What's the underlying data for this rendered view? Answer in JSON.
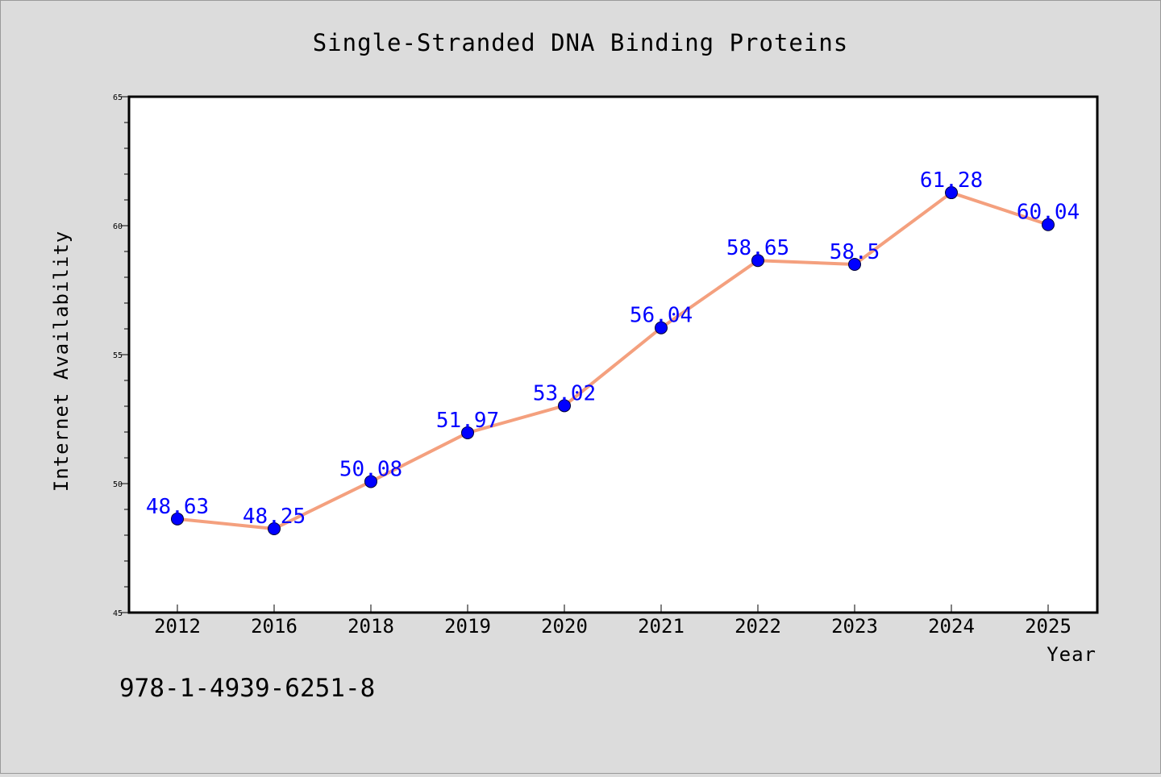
{
  "chart_data": {
    "type": "line",
    "title": "Single-Stranded DNA Binding Proteins",
    "xlabel": "Year",
    "ylabel": "Internet Availability",
    "categories": [
      "2012",
      "2016",
      "2018",
      "2019",
      "2020",
      "2021",
      "2022",
      "2023",
      "2024",
      "2025"
    ],
    "series": [
      {
        "values": [
          48.63,
          48.25,
          50.08,
          51.97,
          53.02,
          56.04,
          58.65,
          58.5,
          61.28,
          60.04
        ],
        "data_labels": [
          "48.63",
          "48.25",
          "50.08",
          "51.97",
          "53.02",
          "56.04",
          "58.65",
          "58.5",
          "61.28",
          "60.04"
        ]
      }
    ],
    "ylim": [
      45,
      65
    ],
    "yticks": [
      "45",
      "50",
      "55",
      "60",
      "65"
    ],
    "grid": false,
    "legend": "none",
    "colors": {
      "line": "#f4a07e",
      "marker": "#0000ff",
      "data_label": "#0000ff",
      "background": "#dcdcdc",
      "plot_background": "#ffffff"
    }
  },
  "footer": {
    "code": "978-1-4939-6251-8"
  }
}
